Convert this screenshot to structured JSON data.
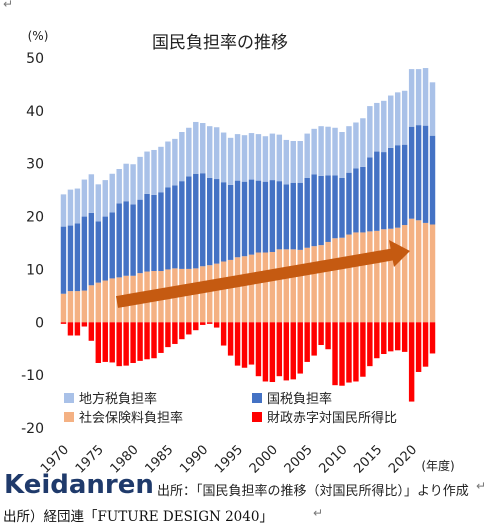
{
  "chart_data": {
    "type": "bar",
    "stacked": true,
    "title": "国民負担率の推移",
    "unit_label": "(%)",
    "xlabel": "(年度)",
    "ylim": [
      -20,
      50
    ],
    "yticks": [
      -20,
      -10,
      0,
      10,
      20,
      30,
      40,
      50
    ],
    "xtick_labels": [
      "1970",
      "1975",
      "1980",
      "1985",
      "1990",
      "1995",
      "2000",
      "2005",
      "2010",
      "2015",
      "2020"
    ],
    "x_start": 1970,
    "categories": [
      1970,
      1971,
      1972,
      1973,
      1974,
      1975,
      1976,
      1977,
      1978,
      1979,
      1980,
      1981,
      1982,
      1983,
      1984,
      1985,
      1986,
      1987,
      1988,
      1989,
      1990,
      1991,
      1992,
      1993,
      1994,
      1995,
      1996,
      1997,
      1998,
      1999,
      2000,
      2001,
      2002,
      2003,
      2004,
      2005,
      2006,
      2007,
      2008,
      2009,
      2010,
      2011,
      2012,
      2013,
      2014,
      2015,
      2016,
      2017,
      2018,
      2019,
      2020,
      2021,
      2022,
      2023
    ],
    "series": [
      {
        "name": "社会保険料負担率",
        "color": "#f4b183",
        "values": [
          5.4,
          5.9,
          5.9,
          6.0,
          7.0,
          7.5,
          7.9,
          8.3,
          8.5,
          8.8,
          8.8,
          9.3,
          9.6,
          9.7,
          9.7,
          10.0,
          10.2,
          10.1,
          10.1,
          10.2,
          10.6,
          10.8,
          11.1,
          11.5,
          11.8,
          12.3,
          12.5,
          12.8,
          13.2,
          13.2,
          13.3,
          13.8,
          13.8,
          13.8,
          13.7,
          14.1,
          14.4,
          14.6,
          15.2,
          15.9,
          16.0,
          16.6,
          17.0,
          17.0,
          17.2,
          17.3,
          17.6,
          17.7,
          17.9,
          18.4,
          19.6,
          19.3,
          18.8,
          18.5
        ]
      },
      {
        "name": "国税負担率",
        "color": "#4472c4",
        "values": [
          12.7,
          12.4,
          12.8,
          14.0,
          13.7,
          11.6,
          12.1,
          12.5,
          14.0,
          14.1,
          13.5,
          13.9,
          14.7,
          14.4,
          14.9,
          15.5,
          15.7,
          16.6,
          17.5,
          17.9,
          17.6,
          16.5,
          16.0,
          15.0,
          14.2,
          14.5,
          14.1,
          14.2,
          13.6,
          13.4,
          13.6,
          12.9,
          12.3,
          12.6,
          12.7,
          13.2,
          13.6,
          13.1,
          12.6,
          11.9,
          11.3,
          11.7,
          12.1,
          12.4,
          14.0,
          15.0,
          14.6,
          15.3,
          15.6,
          15.2,
          17.4,
          18.0,
          18.4,
          16.8
        ]
      },
      {
        "name": "地方税負担率",
        "color": "#a9c1e8",
        "values": [
          6.1,
          6.8,
          6.6,
          7.0,
          7.3,
          7.0,
          6.9,
          7.3,
          6.5,
          7.1,
          7.6,
          8.1,
          8.0,
          8.5,
          8.6,
          8.7,
          8.8,
          9.3,
          9.2,
          9.8,
          9.5,
          9.8,
          9.8,
          9.4,
          8.9,
          8.8,
          8.8,
          8.8,
          8.8,
          8.6,
          8.8,
          8.8,
          8.4,
          7.9,
          7.9,
          8.4,
          8.6,
          9.4,
          9.2,
          9.0,
          8.7,
          8.8,
          8.7,
          9.2,
          9.7,
          9.2,
          9.7,
          9.9,
          10.0,
          10.2,
          10.9,
          10.6,
          10.9,
          10.1
        ]
      },
      {
        "name": "財政赤字対国民所得比",
        "color": "#ff0000",
        "values": [
          -0.3,
          -2.5,
          -2.5,
          -0.8,
          -3.5,
          -7.7,
          -7.5,
          -7.6,
          -8.3,
          -8.2,
          -7.7,
          -7.3,
          -7.0,
          -6.8,
          -5.8,
          -4.7,
          -4.1,
          -3.2,
          -2.3,
          -1.5,
          -0.5,
          -0.3,
          -1.0,
          -4.4,
          -6.3,
          -8.2,
          -8.6,
          -8.0,
          -10.2,
          -11.2,
          -11.3,
          -10.2,
          -11.0,
          -10.8,
          -9.7,
          -7.5,
          -6.3,
          -4.3,
          -5.1,
          -11.9,
          -12.0,
          -11.4,
          -11.2,
          -10.3,
          -8.3,
          -6.8,
          -6.0,
          -5.5,
          -5.3,
          -5.6,
          -15.0,
          -9.4,
          -8.4,
          -5.9
        ]
      }
    ],
    "legend": {
      "placement": "bottom-inside",
      "order": [
        "地方税負担率",
        "国税負担率",
        "社会保険料負担率",
        "財政赤字対国民所得比"
      ]
    },
    "grid": false,
    "annotation": "arrow-uptrend"
  },
  "branding": {
    "org_logo_text": "Keidanren",
    "source_note": "出所：「国民負担率の推移（対国民所得比）」より作成",
    "caption": "出所）経団連「FUTURE DESIGN 2040」",
    "return_mark": "↵"
  }
}
